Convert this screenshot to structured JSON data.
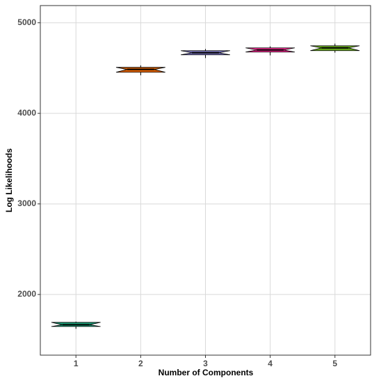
{
  "chart_data": {
    "type": "box",
    "x_label": "Number of Components",
    "y_label": "Log Likelihoods",
    "categories": [
      "1",
      "2",
      "3",
      "4",
      "5"
    ],
    "colors": [
      "#1b9e77",
      "#d95f02",
      "#7570b3",
      "#e7298a",
      "#66a61e"
    ],
    "boxes": [
      {
        "min": 1620,
        "q1": 1646,
        "median": 1665,
        "q3": 1692,
        "max": 1700
      },
      {
        "min": 4420,
        "q1": 4454,
        "median": 4485,
        "q3": 4508,
        "max": 4530
      },
      {
        "min": 4610,
        "q1": 4646,
        "median": 4669,
        "q3": 4692,
        "max": 4710
      },
      {
        "min": 4640,
        "q1": 4677,
        "median": 4700,
        "q3": 4723,
        "max": 4740
      },
      {
        "min": 4670,
        "q1": 4692,
        "median": 4723,
        "q3": 4746,
        "max": 4770
      }
    ],
    "ylim": [
      1330,
      5190
    ],
    "yticks": [
      2000,
      3000,
      4000,
      5000
    ],
    "grid": true
  }
}
